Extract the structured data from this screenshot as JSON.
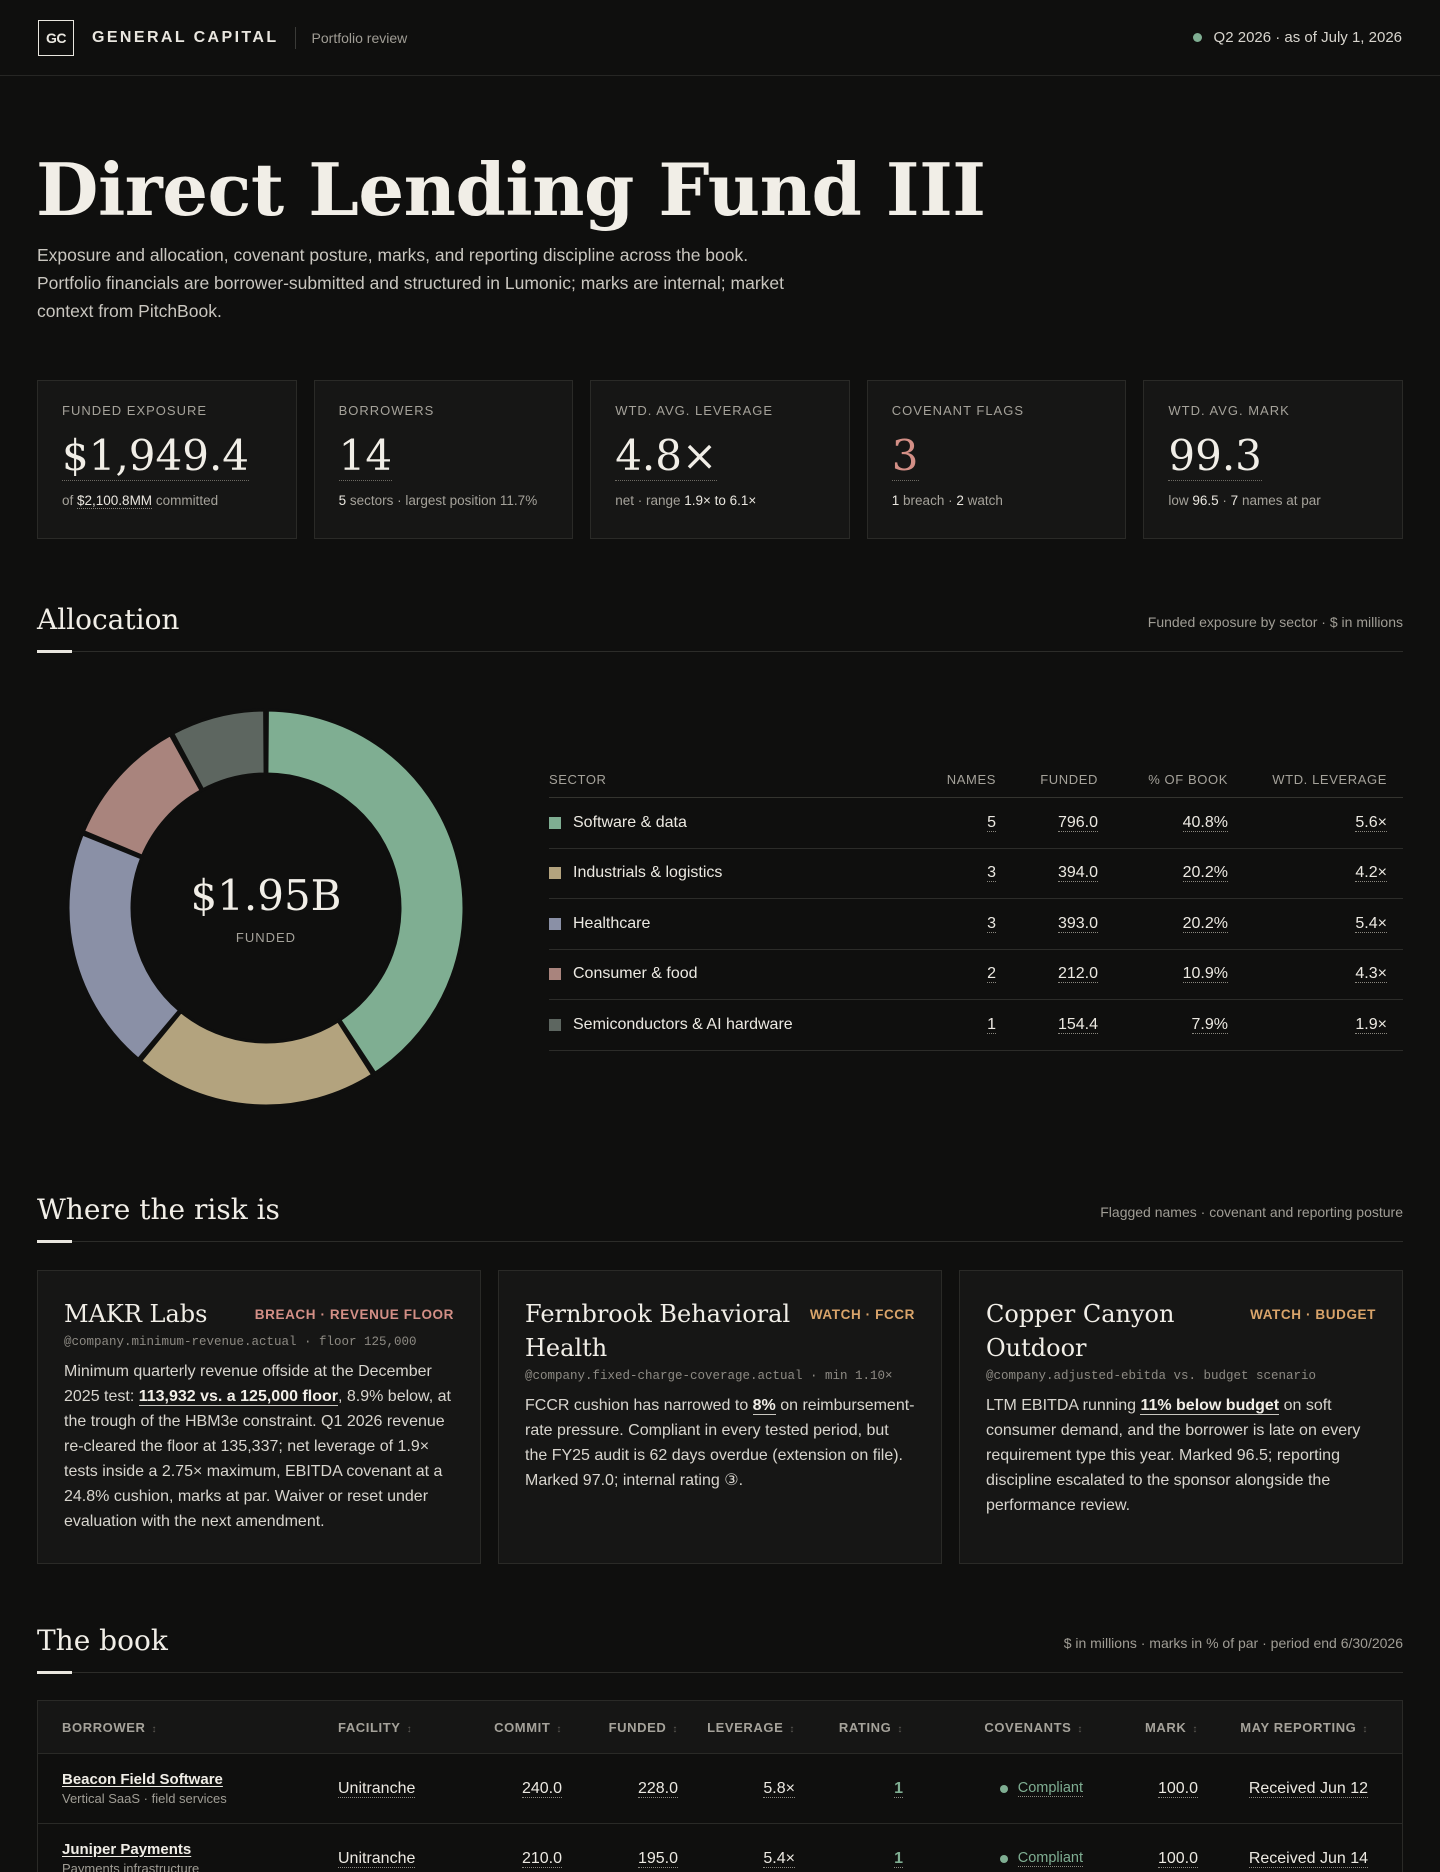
{
  "header": {
    "logo": "GC",
    "brand": "GENERAL CAPITAL",
    "subtitle": "Portfolio review",
    "period": "Q2 2026 · as of July 1, 2026"
  },
  "hero": {
    "title": "Direct Lending Fund III",
    "description": "Exposure and allocation, covenant posture, marks, and reporting discipline across the book. Portfolio financials are borrower-submitted and structured in Lumonic; marks are internal; market context from PitchBook."
  },
  "kpis": [
    {
      "label": "FUNDED EXPOSURE",
      "value": "$1,949.4",
      "note_pre": "of ",
      "note_val": "$2,100.8MM",
      "note_post": " committed"
    },
    {
      "label": "BORROWERS",
      "value": "14",
      "note_a": "5",
      "note_b": " sectors · largest position 11.7%"
    },
    {
      "label": "WTD. AVG. LEVERAGE",
      "value": "4.8×",
      "note_a": "net · range ",
      "note_b": "1.9× to 6.1×"
    },
    {
      "label": "COVENANT FLAGS",
      "value": "3",
      "note_a": "1",
      "note_b": " breach · ",
      "note_c": "2",
      "note_d": " watch"
    },
    {
      "label": "WTD. AVG. MARK",
      "value": "99.3",
      "note_a": "low ",
      "note_b": "96.5",
      "note_c": " · ",
      "note_d": "7",
      "note_e": " names at par"
    }
  ],
  "allocation": {
    "title": "Allocation",
    "meta": "Funded exposure by sector · $ in millions",
    "center_value": "$1.95B",
    "center_label": "FUNDED",
    "columns": [
      "SECTOR",
      "NAMES",
      "FUNDED",
      "% OF BOOK",
      "WTD. LEVERAGE"
    ],
    "rows": [
      {
        "sector": "Software & data",
        "names": "5",
        "funded": "796.0",
        "pct": "40.8%",
        "lev": "5.6×",
        "color": "#7fae92"
      },
      {
        "sector": "Industrials & logistics",
        "names": "3",
        "funded": "394.0",
        "pct": "20.2%",
        "lev": "4.2×",
        "color": "#b3a37e"
      },
      {
        "sector": "Healthcare",
        "names": "3",
        "funded": "393.0",
        "pct": "20.2%",
        "lev": "5.4×",
        "color": "#8a90a6"
      },
      {
        "sector": "Consumer & food",
        "names": "2",
        "funded": "212.0",
        "pct": "10.9%",
        "lev": "4.3×",
        "color": "#a9847d"
      },
      {
        "sector": "Semiconductors & AI hardware",
        "names": "1",
        "funded": "154.4",
        "pct": "7.9%",
        "lev": "1.9×",
        "color": "#5d6660"
      }
    ]
  },
  "chart_data": {
    "type": "pie",
    "categories": [
      "Software & data",
      "Industrials & logistics",
      "Healthcare",
      "Consumer & food",
      "Semiconductors & AI hardware"
    ],
    "values": [
      796.0,
      394.0,
      393.0,
      212.0,
      154.4
    ],
    "colors": [
      "#7fae92",
      "#b3a37e",
      "#8a90a6",
      "#a9847d",
      "#5d6660"
    ]
  },
  "risk": {
    "title": "Where the risk is",
    "meta": "Flagged names · covenant and reporting posture",
    "cards": [
      {
        "name": "MAKR Labs",
        "tag": "BREACH · REVENUE FLOOR",
        "path": "@company.minimum-revenue.actual · floor 125,000",
        "body_a": "Minimum quarterly revenue offside at the December 2025 test: ",
        "body_strong": "113,932 vs. a 125,000 floor",
        "body_b": ", 8.9% below, at the trough of the HBM3e constraint. Q1 2026 revenue re-cleared the floor at 135,337; net leverage of 1.9× tests inside a 2.75× maximum, EBITDA covenant at a 24.8% cushion, marks at par. Waiver or reset under evaluation with the next amendment."
      },
      {
        "name": "Fernbrook Behavioral Health",
        "tag": "WATCH · FCCR",
        "path": "@company.fixed-charge-coverage.actual · min 1.10×",
        "body_a": "FCCR cushion has narrowed to ",
        "body_strong": "8%",
        "body_b": " on reimbursement-rate pressure. Compliant in every tested period, but the FY25 audit is 62 days overdue (extension on file). Marked 97.0; internal rating ③."
      },
      {
        "name": "Copper Canyon Outdoor",
        "tag": "WATCH · BUDGET",
        "path": "@company.adjusted-ebitda vs. budget scenario",
        "body_a": "LTM EBITDA running ",
        "body_strong": "11% below budget",
        "body_b": " on soft consumer demand, and the borrower is late on every requirement type this year. Marked 96.5; reporting discipline escalated to the sponsor alongside the performance review."
      }
    ]
  },
  "book": {
    "title": "The book",
    "meta": "$ in millions · marks in % of par · period end 6/30/2026",
    "columns": [
      "BORROWER",
      "FACILITY",
      "COMMIT",
      "FUNDED",
      "LEVERAGE",
      "RATING",
      "COVENANTS",
      "MARK",
      "MAY REPORTING"
    ],
    "rows": [
      {
        "name": "Beacon Field Software",
        "desc": "Vertical SaaS · field services",
        "facility": "Unitranche",
        "commit": "240.0",
        "funded": "228.0",
        "leverage": "5.8×",
        "rating": "1",
        "covenants": "Compliant",
        "mark": "100.0",
        "reporting": "Received Jun 12"
      },
      {
        "name": "Juniper Payments",
        "desc": "Payments infrastructure",
        "facility": "Unitranche",
        "commit": "210.0",
        "funded": "195.0",
        "leverage": "5.4×",
        "rating": "1",
        "covenants": "Compliant",
        "mark": "100.0",
        "reporting": "Received Jun 14"
      }
    ]
  }
}
